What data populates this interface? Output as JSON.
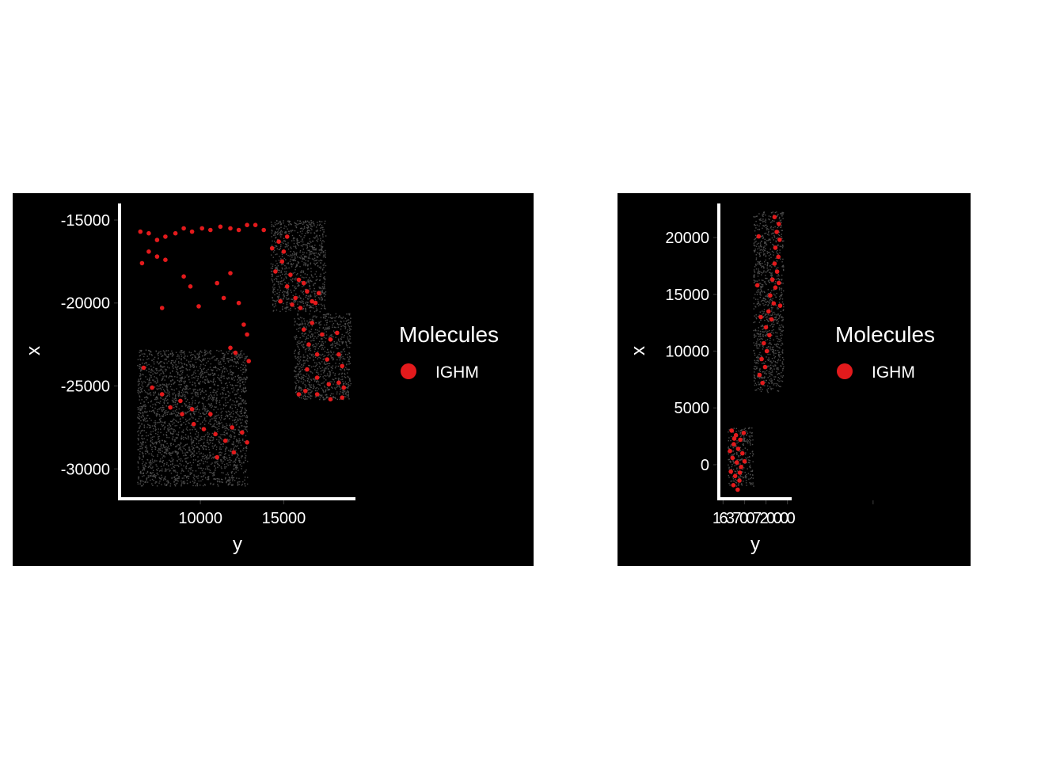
{
  "chart_data": [
    {
      "type": "scatter",
      "xlabel": "y",
      "ylabel": "x",
      "xticks": [
        "10000",
        "15000"
      ],
      "yticks": [
        "-15000",
        "-20000",
        "-25000",
        "-30000"
      ],
      "xtick_values": [
        10000,
        15000
      ],
      "ytick_values": [
        -15000,
        -20000,
        -25000,
        -30000
      ],
      "xlim": [
        5150,
        19300
      ],
      "ylim": [
        -31800,
        -14000
      ],
      "legend": {
        "title": "Molecules",
        "entries": [
          "IGHM"
        ],
        "position": "right"
      },
      "colors": {
        "background": "#000000",
        "cells": "#4d4d4d",
        "molecule": "#e31a1c",
        "text": "#ffffff"
      },
      "background_regions": [
        {
          "y_range": [
            14200,
            17500
          ],
          "x_range": [
            -20500,
            -15000
          ]
        },
        {
          "y_range": [
            15600,
            19000
          ],
          "x_range": [
            -25800,
            -20600
          ]
        },
        {
          "y_range": [
            6200,
            12800
          ],
          "x_range": [
            -31000,
            -22800
          ]
        }
      ],
      "series": [
        {
          "name": "IGHM",
          "points": [
            [
              6400,
              -15700
            ],
            [
              6900,
              -15800
            ],
            [
              7400,
              -16200
            ],
            [
              7900,
              -16000
            ],
            [
              8500,
              -15800
            ],
            [
              9000,
              -15500
            ],
            [
              9500,
              -15700
            ],
            [
              10100,
              -15500
            ],
            [
              10600,
              -15600
            ],
            [
              11200,
              -15400
            ],
            [
              11800,
              -15500
            ],
            [
              12300,
              -15600
            ],
            [
              12800,
              -15300
            ],
            [
              13300,
              -15300
            ],
            [
              13800,
              -15600
            ],
            [
              6500,
              -17600
            ],
            [
              6900,
              -16900
            ],
            [
              7400,
              -17200
            ],
            [
              7900,
              -17400
            ],
            [
              9000,
              -18400
            ],
            [
              9400,
              -19000
            ],
            [
              7700,
              -20300
            ],
            [
              9900,
              -20200
            ],
            [
              11000,
              -18800
            ],
            [
              11400,
              -19700
            ],
            [
              11800,
              -18200
            ],
            [
              12300,
              -20000
            ],
            [
              12600,
              -21300
            ],
            [
              12800,
              -21900
            ],
            [
              11800,
              -22700
            ],
            [
              12100,
              -23000
            ],
            [
              12900,
              -23500
            ],
            [
              14300,
              -16700
            ],
            [
              14700,
              -16300
            ],
            [
              15000,
              -16900
            ],
            [
              15200,
              -16000
            ],
            [
              14900,
              -17500
            ],
            [
              14500,
              -18100
            ],
            [
              15400,
              -18300
            ],
            [
              15900,
              -18600
            ],
            [
              15200,
              -19000
            ],
            [
              16400,
              -19300
            ],
            [
              15700,
              -19700
            ],
            [
              16700,
              -19900
            ],
            [
              16200,
              -18800
            ],
            [
              14800,
              -19900
            ],
            [
              15500,
              -20100
            ],
            [
              16000,
              -20300
            ],
            [
              16900,
              -20000
            ],
            [
              17100,
              -19400
            ],
            [
              16200,
              -21600
            ],
            [
              16700,
              -21200
            ],
            [
              17300,
              -21900
            ],
            [
              17800,
              -22200
            ],
            [
              18200,
              -21800
            ],
            [
              16500,
              -22500
            ],
            [
              17000,
              -23100
            ],
            [
              17600,
              -23400
            ],
            [
              18300,
              -23100
            ],
            [
              18500,
              -23800
            ],
            [
              16400,
              -24000
            ],
            [
              17000,
              -24500
            ],
            [
              17700,
              -24900
            ],
            [
              18300,
              -24800
            ],
            [
              18600,
              -25100
            ],
            [
              16300,
              -25300
            ],
            [
              17000,
              -25500
            ],
            [
              17800,
              -25800
            ],
            [
              18500,
              -25700
            ],
            [
              15900,
              -25500
            ],
            [
              6600,
              -23900
            ],
            [
              7100,
              -25100
            ],
            [
              7700,
              -25500
            ],
            [
              8200,
              -26300
            ],
            [
              8900,
              -26700
            ],
            [
              9600,
              -27300
            ],
            [
              10200,
              -27600
            ],
            [
              10900,
              -27900
            ],
            [
              11500,
              -28300
            ],
            [
              11900,
              -27500
            ],
            [
              12500,
              -27800
            ],
            [
              12800,
              -28400
            ],
            [
              10600,
              -26700
            ],
            [
              9500,
              -26400
            ],
            [
              8800,
              -25900
            ],
            [
              12000,
              -29000
            ],
            [
              11000,
              -29300
            ]
          ]
        }
      ]
    },
    {
      "type": "scatter",
      "xlabel": "y",
      "ylabel": "x",
      "xticks": [
        "1650",
        "1700",
        "1750",
        "1800",
        "2000"
      ],
      "xtick_labels_raw": "163700720000",
      "xtick_values": [
        1650,
        1700,
        1750,
        1800,
        2000
      ],
      "yticks": [
        "20000",
        "15000",
        "10000",
        "5000",
        "0"
      ],
      "ytick_values": [
        20000,
        15000,
        10000,
        5000,
        0
      ],
      "xlim": [
        1640,
        1810
      ],
      "ylim": [
        -3000,
        23000
      ],
      "legend": {
        "title": "Molecules",
        "entries": [
          "IGHM"
        ],
        "position": "right"
      },
      "colors": {
        "background": "#000000",
        "cells": "#4d4d4d",
        "molecule": "#e31a1c",
        "text": "#ffffff"
      },
      "background_regions": [
        {
          "y_range": [
            1720,
            1790
          ],
          "x_range": [
            6400,
            22300
          ]
        },
        {
          "y_range": [
            1660,
            1720
          ],
          "x_range": [
            -1900,
            3300
          ]
        }
      ],
      "series": [
        {
          "name": "IGHM",
          "points": [
            [
              1770,
              21800
            ],
            [
              1780,
              21200
            ],
            [
              1775,
              20500
            ],
            [
              1782,
              19800
            ],
            [
              1772,
              19100
            ],
            [
              1779,
              18300
            ],
            [
              1770,
              17700
            ],
            [
              1776,
              17000
            ],
            [
              1765,
              16300
            ],
            [
              1772,
              15600
            ],
            [
              1760,
              14900
            ],
            [
              1768,
              14200
            ],
            [
              1756,
              13500
            ],
            [
              1763,
              12800
            ],
            [
              1750,
              12100
            ],
            [
              1758,
              11400
            ],
            [
              1745,
              10700
            ],
            [
              1752,
              10000
            ],
            [
              1740,
              9300
            ],
            [
              1748,
              8600
            ],
            [
              1735,
              7900
            ],
            [
              1742,
              7200
            ],
            [
              1730,
              15800
            ],
            [
              1738,
              13000
            ],
            [
              1733,
              20100
            ],
            [
              1780,
              16000
            ],
            [
              1783,
              14000
            ],
            [
              1670,
              3000
            ],
            [
              1680,
              2600
            ],
            [
              1690,
              2200
            ],
            [
              1675,
              1800
            ],
            [
              1685,
              1400
            ],
            [
              1695,
              1000
            ],
            [
              1672,
              600
            ],
            [
              1682,
              200
            ],
            [
              1692,
              -200
            ],
            [
              1668,
              -600
            ],
            [
              1678,
              -1000
            ],
            [
              1688,
              -1400
            ],
            [
              1674,
              -1800
            ],
            [
              1684,
              -2200
            ],
            [
              1698,
              2800
            ],
            [
              1666,
              1200
            ],
            [
              1700,
              300
            ],
            [
              1676,
              2300
            ],
            [
              1689,
              -700
            ]
          ]
        }
      ]
    }
  ]
}
